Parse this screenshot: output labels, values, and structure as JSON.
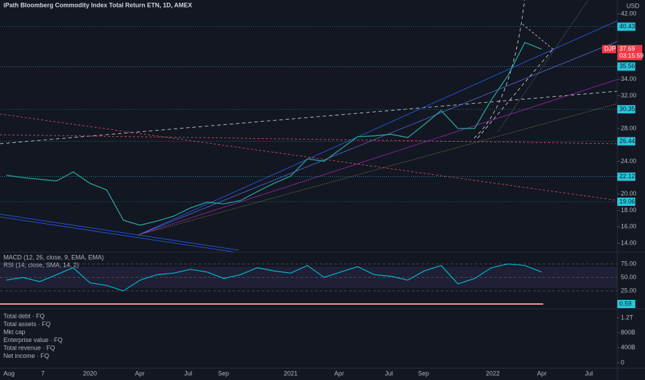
{
  "header": {
    "title": "iPath Bloomberg Commodity Index Total Return ETN, 1D, AMEX",
    "currency": "USD"
  },
  "price_axis": {
    "ticks": [
      {
        "value": 42,
        "label": "42.00"
      },
      {
        "value": 34,
        "label": "34.00"
      },
      {
        "value": 32,
        "label": "32.00"
      },
      {
        "value": 28,
        "label": "28.00"
      },
      {
        "value": 24,
        "label": "24.00"
      },
      {
        "value": 20,
        "label": "20.00"
      },
      {
        "value": 18,
        "label": "18.00"
      },
      {
        "value": 16,
        "label": "16.00"
      },
      {
        "value": 14,
        "label": "14.00"
      }
    ]
  },
  "levels": [
    {
      "value": 40.43,
      "label": "40.43"
    },
    {
      "value": 35.56,
      "label": "35.56"
    },
    {
      "value": 30.35,
      "label": "30.35"
    },
    {
      "value": 26.44,
      "label": "26.44"
    },
    {
      "value": 22.12,
      "label": "22.12"
    },
    {
      "value": 19.06,
      "label": "19.06"
    }
  ],
  "symbol": {
    "ticker": "DJP",
    "last": {
      "value": 37.69,
      "label": "37.69"
    },
    "countdown": "03:15:59"
  },
  "price": {
    "x": [
      "2019-08",
      "2019-09",
      "2019-10",
      "2019-11",
      "2019-12",
      "2020-01",
      "2020-02",
      "2020-03",
      "2020-04",
      "2020-05",
      "2020-06",
      "2020-07",
      "2020-08",
      "2020-09",
      "2020-10",
      "2020-11",
      "2020-12",
      "2021-01",
      "2021-02",
      "2021-03",
      "2021-04",
      "2021-05",
      "2021-06",
      "2021-07",
      "2021-08",
      "2021-09",
      "2021-10",
      "2021-11",
      "2021-12",
      "2022-01",
      "2022-02",
      "2022-03",
      "2022-04"
    ],
    "values": [
      22.3,
      22.0,
      21.8,
      21.6,
      22.7,
      21.3,
      20.5,
      16.8,
      16.2,
      16.7,
      17.3,
      18.3,
      19.0,
      18.8,
      19.2,
      20.3,
      21.3,
      22.2,
      24.3,
      24.0,
      25.5,
      27.0,
      27.1,
      27.3,
      26.9,
      28.5,
      30.2,
      28.0,
      28.0,
      31.5,
      34.5,
      38.5,
      37.69
    ]
  },
  "indicators": {
    "macd": "MACD (12, 26, close, 9, EMA, EMA)",
    "rsi": "RSI (14, close, SMA, 14, 2)",
    "rsi_ticks": [
      {
        "value": 75,
        "label": "75.00"
      },
      {
        "value": 50,
        "label": "50.00"
      },
      {
        "value": 25,
        "label": "25.00"
      }
    ],
    "rsi_values": [
      45,
      50,
      42,
      55,
      68,
      40,
      35,
      25,
      45,
      55,
      58,
      65,
      60,
      48,
      55,
      68,
      62,
      58,
      72,
      50,
      60,
      70,
      55,
      52,
      45,
      62,
      72,
      38,
      48,
      68,
      75,
      72,
      60
    ],
    "last_value_label": "0.59"
  },
  "fundamentals": {
    "items": [
      "Total debt · FQ",
      "Total assets · FQ",
      "Mkt cap",
      "Enterprise value · FQ",
      "Total revenue · FQ",
      "Net income · FQ"
    ],
    "ticks": [
      {
        "value": 1200000000000,
        "label": "1.2T"
      },
      {
        "value": 800000000000,
        "label": "800B"
      },
      {
        "value": 400000000000,
        "label": "400B"
      },
      0
    ]
  },
  "time_axis": [
    "Aug",
    "7",
    "2020",
    "Apr",
    "Jul",
    "Sep",
    "2021",
    "Apr",
    "Jul",
    "Sep",
    "2022",
    "Apr",
    "Jul"
  ]
}
